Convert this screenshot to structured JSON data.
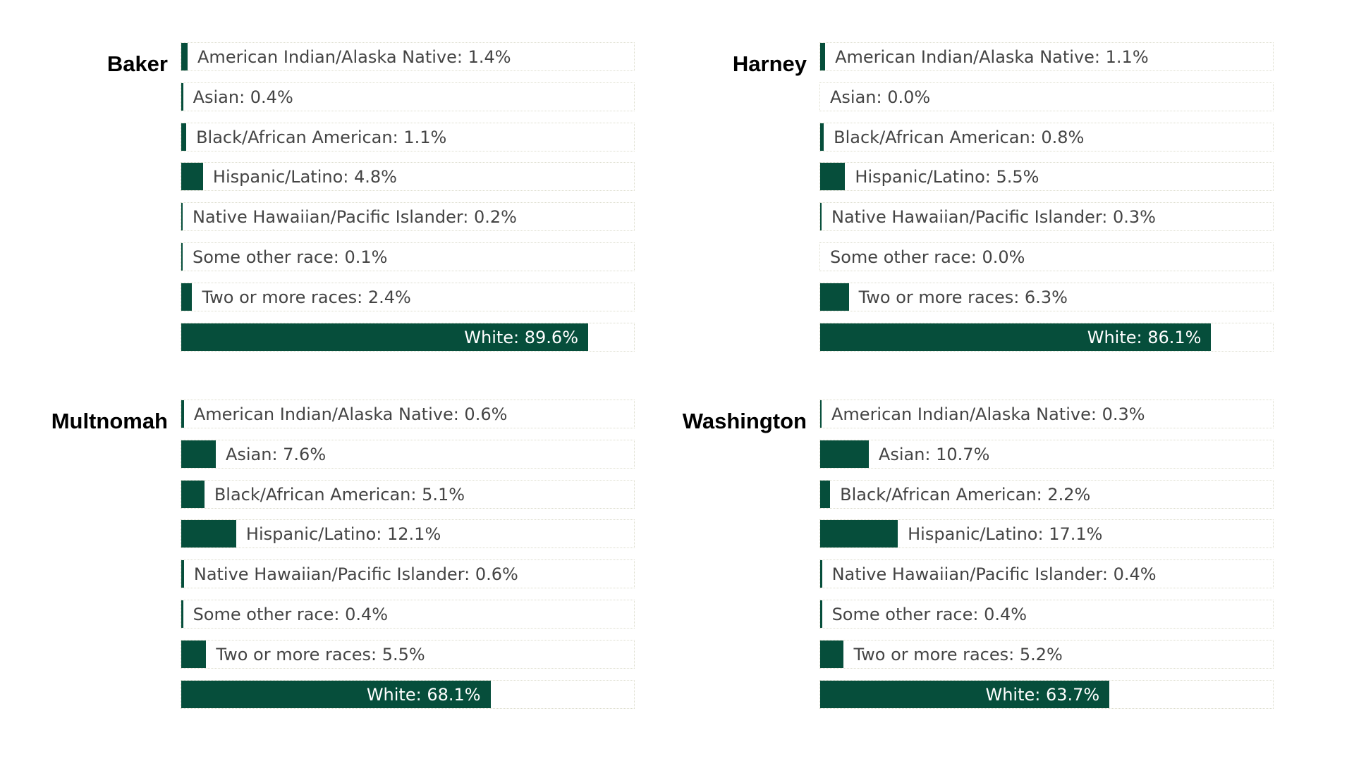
{
  "colors": {
    "bar": "#064e3b",
    "label": "#444444",
    "label_inside": "#ffffff",
    "title": "#000000",
    "grid": "#dcdccc"
  },
  "chart_data": [
    {
      "type": "bar",
      "orientation": "horizontal",
      "title": "Baker",
      "categories": [
        "American Indian/Alaska Native",
        "Asian",
        "Black/African American",
        "Hispanic/Latino",
        "Native Hawaiian/Pacific Islander",
        "Some other race",
        "Two or more races",
        "White"
      ],
      "values": [
        1.4,
        0.4,
        1.1,
        4.8,
        0.2,
        0.1,
        2.4,
        89.6
      ],
      "labels": [
        "American Indian/Alaska Native: 1.4%",
        "Asian: 0.4%",
        "Black/African American: 1.1%",
        "Hispanic/Latino: 4.8%",
        "Native Hawaiian/Pacific Islander: 0.2%",
        "Some other race: 0.1%",
        "Two or more races: 2.4%",
        "White: 89.6%"
      ],
      "xlim": [
        0,
        100
      ],
      "grid": false,
      "legend": false
    },
    {
      "type": "bar",
      "orientation": "horizontal",
      "title": "Harney",
      "categories": [
        "American Indian/Alaska Native",
        "Asian",
        "Black/African American",
        "Hispanic/Latino",
        "Native Hawaiian/Pacific Islander",
        "Some other race",
        "Two or more races",
        "White"
      ],
      "values": [
        1.1,
        0.0,
        0.8,
        5.5,
        0.3,
        0.0,
        6.3,
        86.1
      ],
      "labels": [
        "American Indian/Alaska Native: 1.1%",
        "Asian: 0.0%",
        "Black/African American: 0.8%",
        "Hispanic/Latino: 5.5%",
        "Native Hawaiian/Pacific Islander: 0.3%",
        "Some other race: 0.0%",
        "Two or more races: 6.3%",
        "White: 86.1%"
      ],
      "xlim": [
        0,
        100
      ],
      "grid": false,
      "legend": false
    },
    {
      "type": "bar",
      "orientation": "horizontal",
      "title": "Multnomah",
      "categories": [
        "American Indian/Alaska Native",
        "Asian",
        "Black/African American",
        "Hispanic/Latino",
        "Native Hawaiian/Pacific Islander",
        "Some other race",
        "Two or more races",
        "White"
      ],
      "values": [
        0.6,
        7.6,
        5.1,
        12.1,
        0.6,
        0.4,
        5.5,
        68.1
      ],
      "labels": [
        "American Indian/Alaska Native: 0.6%",
        "Asian: 7.6%",
        "Black/African American: 5.1%",
        "Hispanic/Latino: 12.1%",
        "Native Hawaiian/Pacific Islander: 0.6%",
        "Some other race: 0.4%",
        "Two or more races: 5.5%",
        "White: 68.1%"
      ],
      "xlim": [
        0,
        100
      ],
      "grid": false,
      "legend": false
    },
    {
      "type": "bar",
      "orientation": "horizontal",
      "title": "Washington",
      "categories": [
        "American Indian/Alaska Native",
        "Asian",
        "Black/African American",
        "Hispanic/Latino",
        "Native Hawaiian/Pacific Islander",
        "Some other race",
        "Two or more races",
        "White"
      ],
      "values": [
        0.3,
        10.7,
        2.2,
        17.1,
        0.4,
        0.4,
        5.2,
        63.7
      ],
      "labels": [
        "American Indian/Alaska Native: 0.3%",
        "Asian: 10.7%",
        "Black/African American: 2.2%",
        "Hispanic/Latino: 17.1%",
        "Native Hawaiian/Pacific Islander: 0.4%",
        "Some other race: 0.4%",
        "Two or more races: 5.2%",
        "White: 63.7%"
      ],
      "xlim": [
        0,
        100
      ],
      "grid": false,
      "legend": false
    }
  ]
}
